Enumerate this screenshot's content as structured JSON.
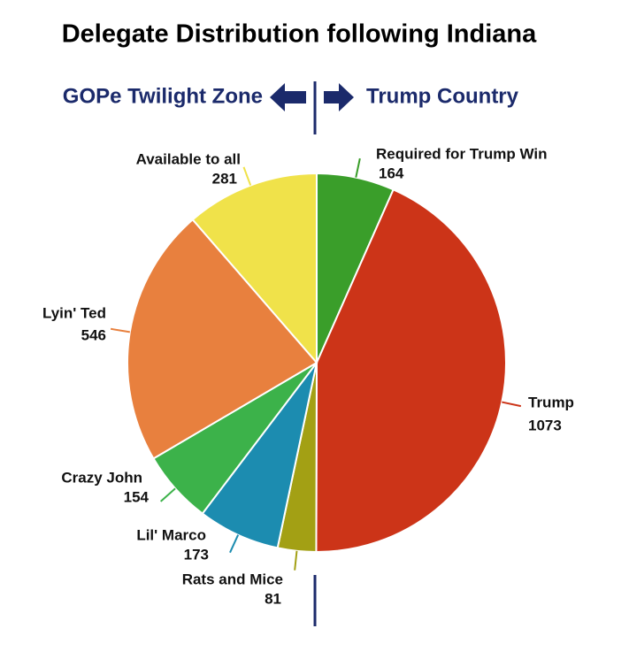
{
  "chart_data": {
    "type": "pie",
    "title": "Delegate Distribution following Indiana",
    "annotations": [
      "GOPe Twilight Zone",
      "Trump Country"
    ],
    "categories": [
      "Required for Trump Win",
      "Trump",
      "Rats and Mice",
      "Lil' Marco",
      "Crazy John",
      "Lyin' Ted",
      "Available to all"
    ],
    "values": [
      164,
      1073,
      81,
      173,
      154,
      546,
      281
    ],
    "colors": [
      "#3a9e2a",
      "#cc3418",
      "#a3a014",
      "#1c8cb0",
      "#3cb24a",
      "#e8803e",
      "#f0e24a"
    ]
  }
}
